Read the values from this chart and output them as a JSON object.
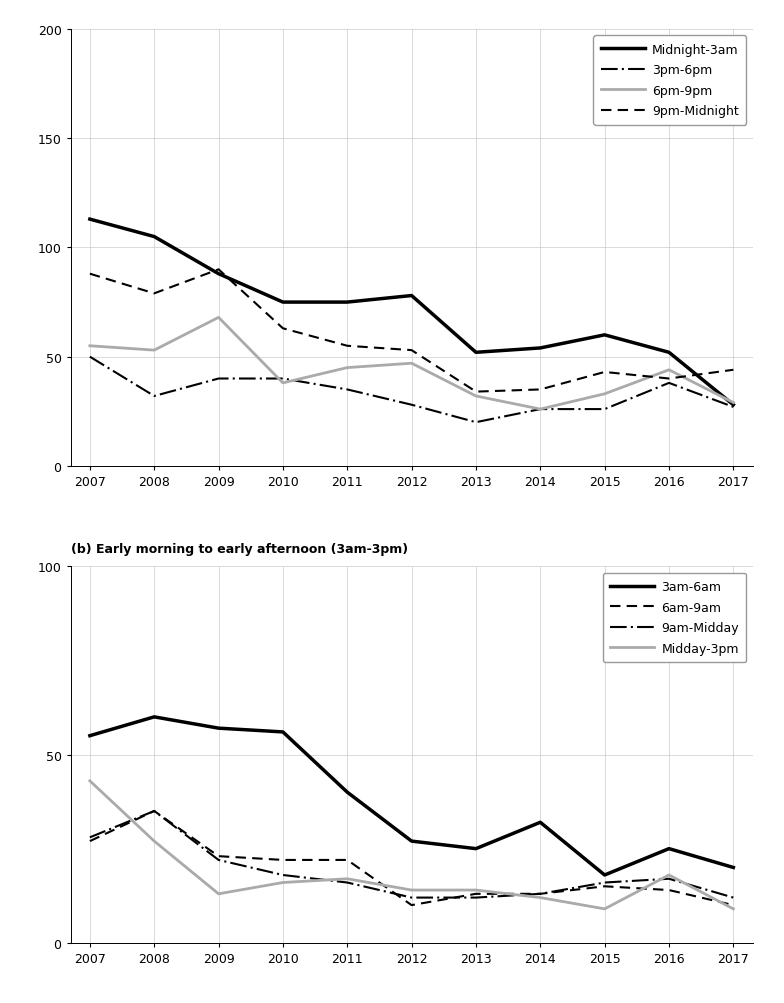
{
  "years": [
    2007,
    2008,
    2009,
    2010,
    2011,
    2012,
    2013,
    2014,
    2015,
    2016,
    2017
  ],
  "chart_a": {
    "ylim": [
      0,
      200
    ],
    "yticks": [
      0,
      50,
      100,
      150,
      200
    ],
    "series": {
      "Midnight-3am": {
        "values": [
          113,
          105,
          88,
          75,
          75,
          78,
          52,
          54,
          60,
          52,
          28
        ],
        "color": "#000000",
        "linestyle": "solid",
        "linewidth": 2.5,
        "dashes": null
      },
      "3pm-6pm": {
        "values": [
          50,
          32,
          40,
          40,
          35,
          28,
          20,
          26,
          26,
          38,
          27
        ],
        "color": "#000000",
        "linestyle": "dashdot",
        "linewidth": 1.5,
        "dashes": [
          8,
          2,
          1,
          2
        ]
      },
      "6pm-9pm": {
        "values": [
          55,
          53,
          68,
          38,
          45,
          47,
          32,
          26,
          33,
          44,
          29
        ],
        "color": "#aaaaaa",
        "linestyle": "solid",
        "linewidth": 2.0,
        "dashes": null
      },
      "9pm-Midnight": {
        "values": [
          88,
          79,
          90,
          63,
          55,
          53,
          34,
          35,
          43,
          40,
          44
        ],
        "color": "#000000",
        "linestyle": "dashed",
        "linewidth": 1.5,
        "dashes": [
          5,
          3
        ]
      }
    }
  },
  "chart_b": {
    "subtitle": "(b) Early morning to early afternoon (3am-3pm)",
    "ylim": [
      0,
      100
    ],
    "yticks": [
      0,
      50,
      100
    ],
    "series": {
      "3am-6am": {
        "values": [
          55,
          60,
          57,
          56,
          40,
          27,
          25,
          32,
          18,
          25,
          20
        ],
        "color": "#000000",
        "linestyle": "solid",
        "linewidth": 2.5,
        "dashes": null
      },
      "6am-9am": {
        "values": [
          27,
          35,
          23,
          22,
          22,
          10,
          13,
          13,
          15,
          14,
          10
        ],
        "color": "#000000",
        "linestyle": "dashed",
        "linewidth": 1.5,
        "dashes": [
          5,
          3
        ]
      },
      "9am-Midday": {
        "values": [
          28,
          35,
          22,
          18,
          16,
          12,
          12,
          13,
          16,
          17,
          12
        ],
        "color": "#000000",
        "linestyle": "dashdot",
        "linewidth": 1.5,
        "dashes": [
          8,
          2,
          1,
          2
        ]
      },
      "Midday-3pm": {
        "values": [
          43,
          27,
          13,
          16,
          17,
          14,
          14,
          12,
          9,
          18,
          9
        ],
        "color": "#aaaaaa",
        "linestyle": "solid",
        "linewidth": 2.0,
        "dashes": null
      }
    }
  },
  "background_color": "#ffffff",
  "grid_color": "#cccccc",
  "tick_fontsize": 9,
  "legend_fontsize": 9,
  "subtitle_fontsize": 9
}
